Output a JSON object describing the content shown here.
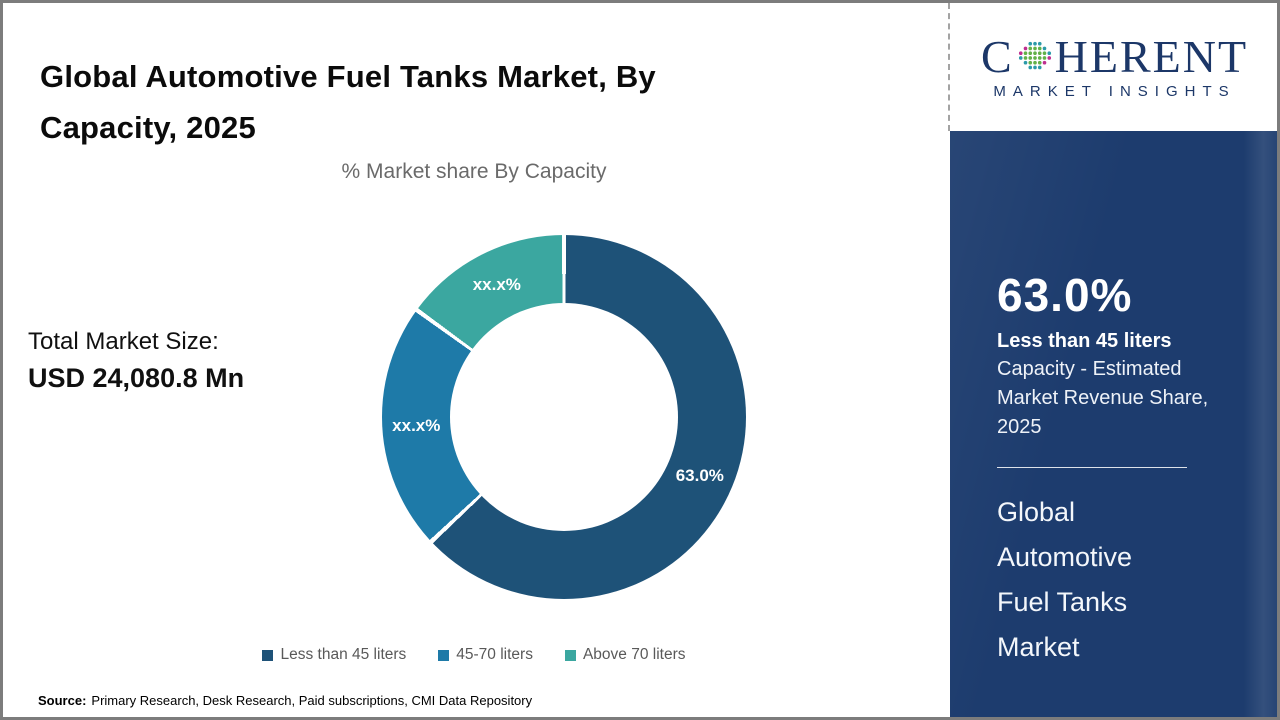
{
  "header": {
    "title": "Global Automotive Fuel Tanks Market, By Capacity, 2025"
  },
  "logo": {
    "name_prefix": "C",
    "name_suffix": "HERENT",
    "tagline": "MARKET INSIGHTS"
  },
  "summary": {
    "total_label": "Total Market Size:",
    "total_value": "USD 24,080.8 Mn"
  },
  "chart_data": {
    "type": "pie",
    "subtype": "donut",
    "title": "% Market share By Capacity",
    "categories": [
      "Less than 45 liters",
      "45-70 liters",
      "Above 70 liters"
    ],
    "values": [
      63.0,
      22.0,
      15.0
    ],
    "value_labels": [
      "63.0%",
      "xx.x%",
      "xx.x%"
    ],
    "colors": [
      "#1e5278",
      "#1e7aa8",
      "#3ba7a0"
    ],
    "legend_position": "bottom",
    "hole_ratio": 0.63,
    "start_angle_deg": 0,
    "direction": "clockwise"
  },
  "sidebar": {
    "stat_value": "63.0%",
    "stat_segment": "Less than 45 liters",
    "stat_description": "Capacity - Estimated Market Revenue Share, 2025",
    "market_name": "Global Automotive Fuel Tanks Market"
  },
  "footer": {
    "source_label": "Source:",
    "source_text": "Primary Research, Desk Research, Paid subscriptions, CMI Data Repository"
  }
}
